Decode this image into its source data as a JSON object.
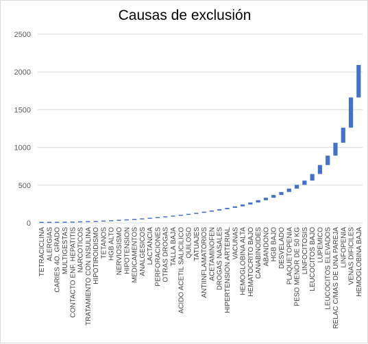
{
  "chart_data": {
    "type": "bar",
    "subtype": "waterfall",
    "title": "Causas de exclusión",
    "xlabel": "",
    "ylabel": "",
    "ylim": [
      0,
      2500
    ],
    "yticks": [
      0,
      500,
      1000,
      1500,
      2000,
      2500
    ],
    "grid": true,
    "legend": "none",
    "bar_color": "#4472c4",
    "categories": [
      "TETRACICLINA",
      "ALERGIAS",
      "CARIES 4O. GRADO",
      "MULTIGESTAS",
      "CONTACTO ENF. HEPATITIS",
      "NARCOTICOS",
      "TRATAMIENTO CON INSULINA",
      "HIPOTIROIDISMO",
      "TETANOS",
      "HGB ALTO",
      "NERVIOSISMO",
      "HIPOTENSION",
      "MEDICAMENTOS",
      "ANALGESICOS",
      "LACTANCIA",
      "PERFORACIONES",
      "OTRAS DROGAS",
      "TALLA BAJA",
      "ACIDO ACETIL SALICILICO",
      "QUILOSO",
      "TATUAJES",
      "ANTIINFLAMATORIOS",
      "ACETAMINOFEN",
      "DROGAS NASALES",
      "HIPERTENSION ARTERIAL",
      "VACUNAS",
      "HEMOGLOBINA ALTA",
      "HEMATOCRITO BAJO",
      "CANABINOIDES",
      "ABANDONO",
      "HGB BAJO",
      "DESVELADO",
      "PLAQUETOPENIA",
      "PESO MENOR DE 50 KG",
      "LINFOCITOSIS",
      "LEUCOCITOS BAJO",
      "LUPEMICO",
      "LEUCOCITOS ELEVADOS",
      "RELAC C/MAS DE UNA PAREJA",
      "LINFOPENIA",
      "VENAS DIFICILES",
      "HEMOGLOBINA BAJA"
    ],
    "values": [
      1,
      1,
      1,
      2,
      3,
      3,
      3,
      4,
      5,
      5,
      6,
      6,
      7,
      8,
      9,
      10,
      10,
      11,
      12,
      13,
      14,
      15,
      16,
      17,
      18,
      20,
      24,
      27,
      30,
      33,
      36,
      40,
      45,
      50,
      56,
      87,
      119,
      125,
      170,
      200,
      400,
      430
    ]
  }
}
